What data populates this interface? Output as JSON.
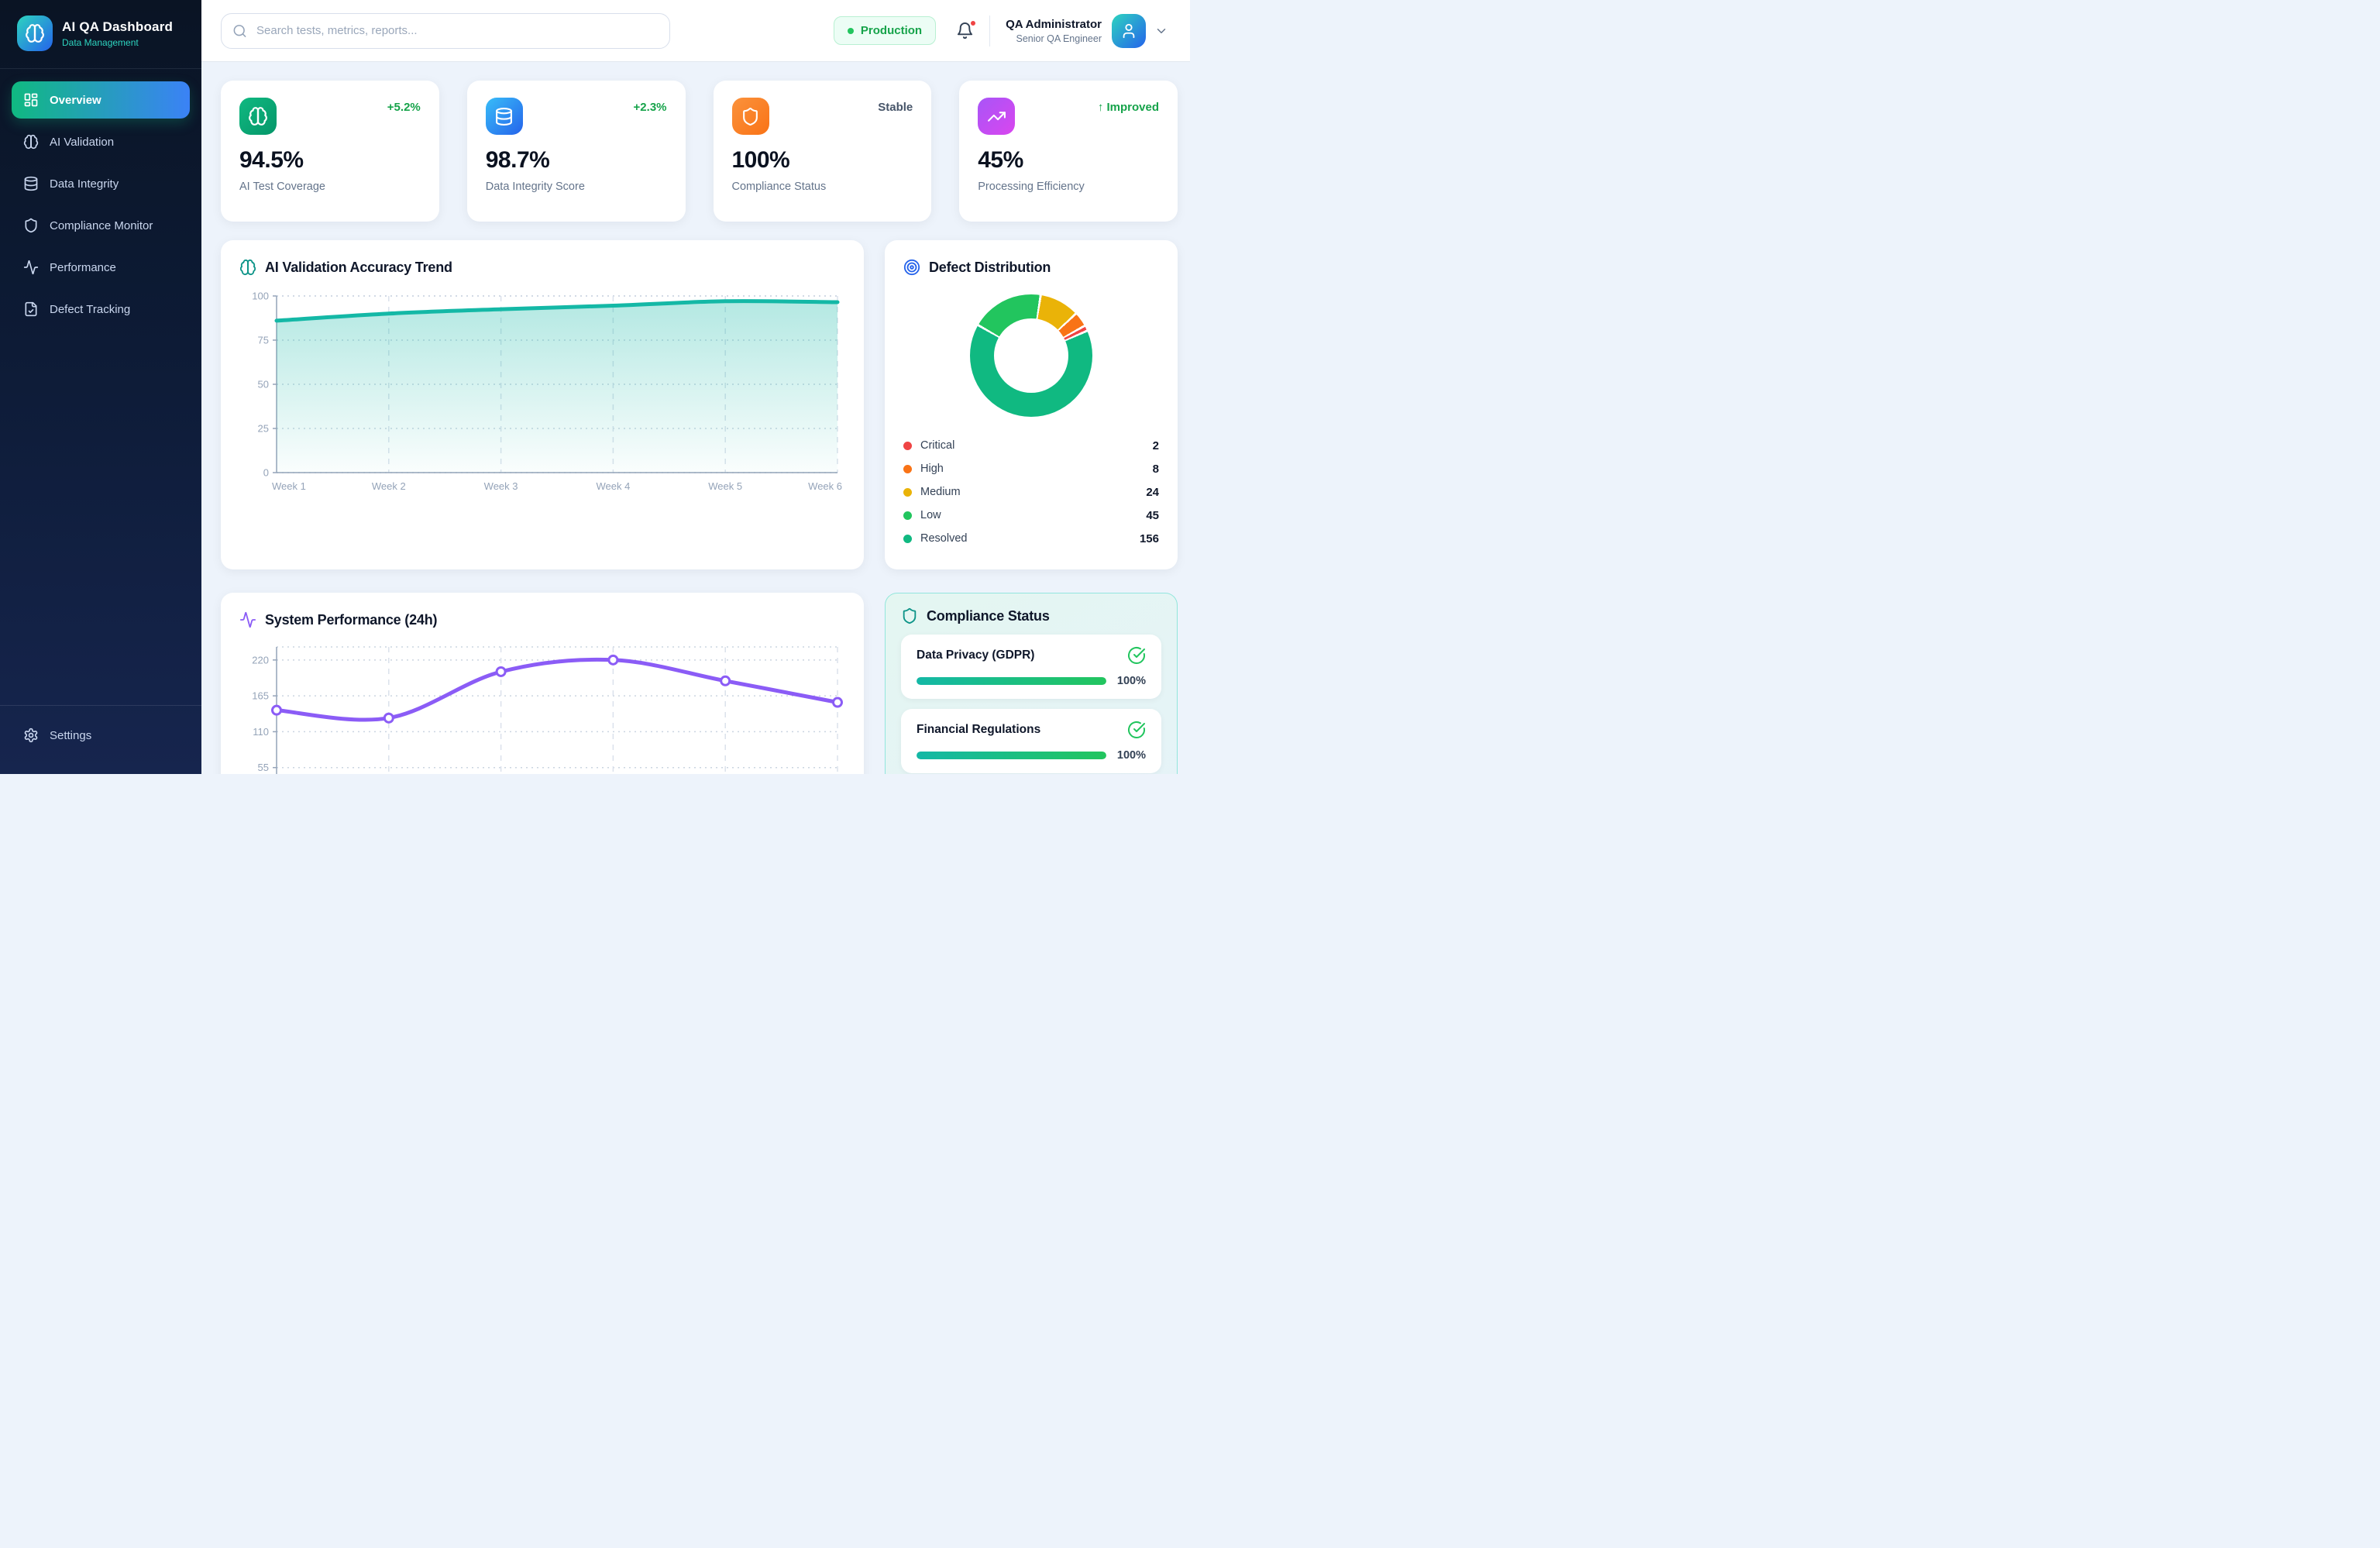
{
  "sidebar": {
    "logo_title": "AI QA Dashboard",
    "logo_subtitle": "Data Management",
    "items": [
      {
        "label": "Overview",
        "icon": "dashboard-icon",
        "active": true
      },
      {
        "label": "AI Validation",
        "icon": "brain-icon",
        "active": false
      },
      {
        "label": "Data Integrity",
        "icon": "database-icon",
        "active": false
      },
      {
        "label": "Compliance Monitor",
        "icon": "shield-icon",
        "active": false
      },
      {
        "label": "Performance",
        "icon": "activity-icon",
        "active": false
      },
      {
        "label": "Defect Tracking",
        "icon": "file-check-icon",
        "active": false
      }
    ],
    "settings_label": "Settings"
  },
  "header": {
    "search_placeholder": "Search tests, metrics, reports...",
    "environment_badge": "Production",
    "user_name": "QA Administrator",
    "user_role": "Senior QA Engineer",
    "has_notification": true
  },
  "stats": [
    {
      "value": "94.5%",
      "label": "AI Test Coverage",
      "delta": "+5.2%",
      "tone": "positive",
      "icon": "brain-icon"
    },
    {
      "value": "98.7%",
      "label": "Data Integrity Score",
      "delta": "+2.3%",
      "tone": "positive",
      "icon": "database-icon"
    },
    {
      "value": "100%",
      "label": "Compliance Status",
      "delta": "Stable",
      "tone": "neutral",
      "icon": "shield-icon"
    },
    {
      "value": "45%",
      "label": "Processing Efficiency",
      "delta": "↑ Improved",
      "tone": "positive",
      "icon": "trending-up-icon"
    }
  ],
  "panels": {
    "accuracy_title": "AI Validation Accuracy Trend",
    "defects_title": "Defect Distribution",
    "performance_title": "System Performance (24h)",
    "compliance_title": "Compliance Status"
  },
  "compliance_items": [
    {
      "name": "Data Privacy (GDPR)",
      "percent": 100,
      "percent_label": "100%"
    },
    {
      "name": "Financial Regulations",
      "percent": 100,
      "percent_label": "100%"
    }
  ],
  "colors": {
    "accent_teal": "#14b8a6",
    "accent_blue": "#3b82f6",
    "positive_green": "#16a34a",
    "neutral_slate": "#475569",
    "performance_purple": "#8b5cf6",
    "badge_green": "#22c55e",
    "alert_red": "#ef4444"
  },
  "chart_data": [
    {
      "type": "area",
      "title": "AI Validation Accuracy Trend",
      "categories": [
        "Week 1",
        "Week 2",
        "Week 3",
        "Week 4",
        "Week 5",
        "Week 6"
      ],
      "values": [
        86,
        90,
        92.5,
        94.5,
        97,
        96.5
      ],
      "ylim": [
        0,
        100
      ],
      "yticks": [
        0,
        25,
        50,
        75,
        100
      ],
      "line_color": "#14b8a6",
      "grid": true,
      "fill": true,
      "markers": false
    },
    {
      "type": "pie",
      "title": "Defect Distribution",
      "labels": [
        "Critical",
        "High",
        "Medium",
        "Low",
        "Resolved"
      ],
      "values": [
        2,
        8,
        24,
        45,
        156
      ],
      "colors": [
        "#ef4444",
        "#f97316",
        "#eab308",
        "#22c55e",
        "#10b981"
      ],
      "donut": true,
      "start_angle": -59,
      "draw_order": [
        3,
        2,
        1,
        0,
        4
      ],
      "legend_position": "bottom"
    },
    {
      "type": "line",
      "title": "System Performance (24h)",
      "values": [
        143,
        131,
        202,
        220,
        188,
        155
      ],
      "x_points": 6,
      "x_axis_cropped": true,
      "ylim": [
        0,
        240
      ],
      "yticks": [
        55,
        110,
        165,
        220
      ],
      "line_color": "#8b5cf6",
      "grid": true,
      "fill": false,
      "markers": true
    }
  ]
}
